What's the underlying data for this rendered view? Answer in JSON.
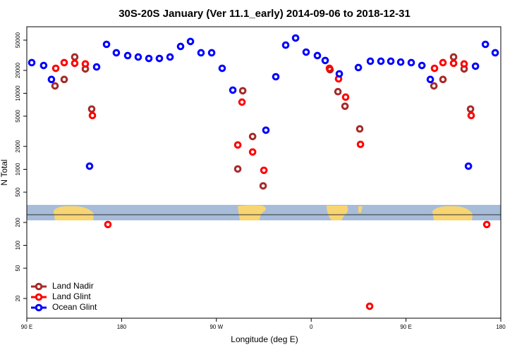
{
  "chart_data": {
    "type": "scatter",
    "title": "30S-20S January (Ver 11.1_early)   2014-09-06 to 2018-12-31",
    "x_label": "Longitude (deg E)",
    "y_label": "N Total",
    "log_y": true,
    "legend": "bottom-left",
    "xlim": [
      90,
      540
    ],
    "ylim": [
      11,
      75000
    ],
    "xticks": [
      {
        "value": 90,
        "label": "90 E"
      },
      180,
      {
        "value": 270,
        "label": "90 W"
      },
      {
        "value": 360,
        "label": "0"
      },
      {
        "value": 450,
        "label": "90 E"
      },
      {
        "value": 540,
        "label": "180"
      }
    ],
    "yticks": [
      20,
      50,
      100,
      200,
      500,
      1000,
      2000,
      5000,
      10000,
      20000,
      50000
    ],
    "series": [
      {
        "name": "Land Nadir",
        "color": "#a52a2a",
        "x": [
          116.8,
          125.5,
          135.5,
          145.6,
          151.6,
          290.3,
          295,
          304.4,
          314.4,
          377.9,
          385.4,
          392.1,
          406.1,
          476.5,
          485.1,
          495.2,
          505.2,
          511.3
        ],
        "values": [
          12500,
          15200,
          30000,
          20900,
          6200,
          1010,
          10800,
          2700,
          605,
          20400,
          10500,
          6750,
          3400,
          12500,
          15200,
          30000,
          20900,
          6200
        ]
      },
      {
        "name": "Land Glint",
        "color": "#ff0000",
        "x": [
          117.5,
          125.5,
          135.5,
          145.6,
          152.3,
          167,
          290.3,
          294.3,
          304.4,
          315.1,
          377.3,
          386,
          392.7,
          406.8,
          415.5,
          477.1,
          485.1,
          495.2,
          505.2,
          511.9,
          526.7
        ],
        "values": [
          21300,
          25300,
          24800,
          24300,
          5100,
          188,
          2090,
          7650,
          1690,
          970,
          21300,
          15500,
          8900,
          2130,
          15.8,
          21300,
          25300,
          24800,
          24300,
          5100,
          188
        ]
      },
      {
        "name": "Ocean Glint",
        "color": "#0000ff",
        "x": [
          94.7,
          106,
          113.4,
          149.6,
          156.3,
          165.7,
          175,
          185.8,
          195.8,
          205.9,
          215.9,
          226,
          236,
          245.4,
          255.4,
          265.5,
          275.5,
          285.6,
          317,
          326.4,
          335.8,
          345.2,
          355.2,
          365.9,
          373.3,
          386.7,
          404.8,
          416.2,
          426.2,
          435.6,
          445,
          455,
          465.1,
          473.1,
          509.3,
          516,
          525.4,
          534.7
        ],
        "values": [
          25300,
          23200,
          15200,
          1100,
          22200,
          44000,
          34100,
          31300,
          30000,
          28700,
          28700,
          30000,
          41300,
          48000,
          34100,
          34100,
          21300,
          11000,
          3270,
          16500,
          43000,
          53300,
          34800,
          31300,
          27000,
          18000,
          21800,
          26400,
          26400,
          26400,
          25700,
          25300,
          23200,
          15200,
          1100,
          22700,
          44000,
          34100
        ]
      }
    ]
  }
}
